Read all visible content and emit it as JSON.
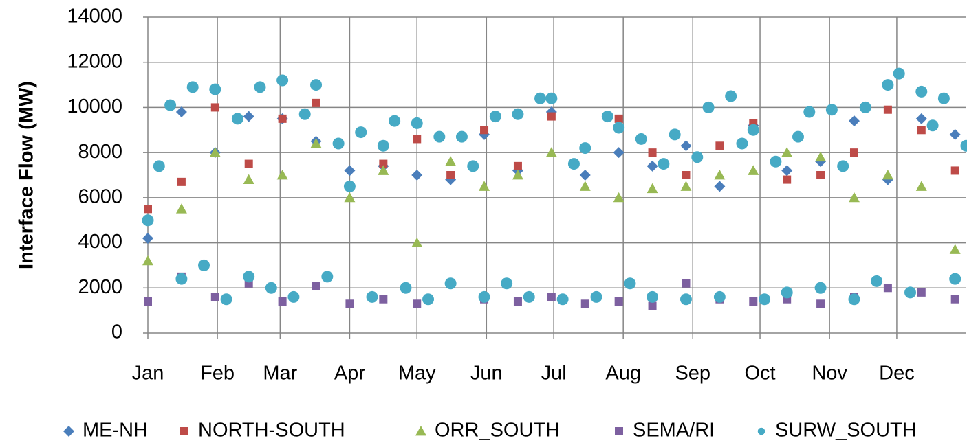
{
  "chart_data": {
    "type": "scatter",
    "ylabel": "Interface Flow (MW)",
    "xlim": [
      0,
      365
    ],
    "xticks": [
      {
        "value": 0,
        "label": "Jan"
      },
      {
        "value": 31,
        "label": "Feb"
      },
      {
        "value": 59,
        "label": "Mar"
      },
      {
        "value": 90,
        "label": "Apr"
      },
      {
        "value": 120,
        "label": "May"
      },
      {
        "value": 151,
        "label": "Jun"
      },
      {
        "value": 181,
        "label": "Jul"
      },
      {
        "value": 212,
        "label": "Aug"
      },
      {
        "value": 243,
        "label": "Sep"
      },
      {
        "value": 273,
        "label": "Oct"
      },
      {
        "value": 304,
        "label": "Nov"
      },
      {
        "value": 334,
        "label": "Dec"
      }
    ],
    "ylim": [
      0,
      14000
    ],
    "yticks": [
      0,
      2000,
      4000,
      6000,
      8000,
      10000,
      12000,
      14000
    ],
    "grid": true,
    "legend": "bottom",
    "series": [
      {
        "name": "ME-NH",
        "color": "#4a7ebb",
        "marker": "diamond",
        "x": [
          0,
          15,
          30,
          45,
          60,
          75,
          90,
          105,
          120,
          135,
          150,
          165,
          180,
          195,
          210,
          225,
          240,
          255,
          270,
          285,
          300,
          315,
          330,
          345,
          360
        ],
        "values": [
          4200,
          9800,
          8000,
          9600,
          9500,
          8500,
          7200,
          7400,
          7000,
          6800,
          8800,
          7200,
          9800,
          7000,
          8000,
          7400,
          8300,
          6500,
          9200,
          7200,
          7600,
          9400,
          6800,
          9500,
          8800
        ]
      },
      {
        "name": "NORTH-SOUTH",
        "color": "#be4b48",
        "marker": "square",
        "x": [
          0,
          15,
          30,
          45,
          60,
          75,
          90,
          105,
          120,
          135,
          150,
          165,
          180,
          195,
          210,
          225,
          240,
          255,
          270,
          285,
          300,
          315,
          330,
          345,
          360
        ],
        "values": [
          5500,
          6700,
          10000,
          7500,
          9500,
          10200,
          6500,
          7500,
          8600,
          7000,
          9000,
          7400,
          9600,
          8200,
          9500,
          8000,
          7000,
          8300,
          9300,
          6800,
          7000,
          8000,
          9900,
          9000,
          7200
        ]
      },
      {
        "name": "ORR_SOUTH",
        "color": "#98b954",
        "marker": "triangle",
        "x": [
          0,
          15,
          30,
          45,
          60,
          75,
          90,
          105,
          120,
          135,
          150,
          165,
          180,
          195,
          210,
          225,
          240,
          255,
          270,
          285,
          300,
          315,
          330,
          345,
          360
        ],
        "values": [
          3200,
          5500,
          8000,
          6800,
          7000,
          8400,
          6000,
          7200,
          4000,
          7600,
          6500,
          7000,
          8000,
          6500,
          6000,
          6400,
          6500,
          7000,
          7200,
          8000,
          7800,
          6000,
          7000,
          6500,
          3700
        ]
      },
      {
        "name": "SEMA/RI",
        "color": "#7d60a0",
        "marker": "square",
        "x": [
          0,
          15,
          30,
          45,
          60,
          75,
          90,
          105,
          120,
          135,
          150,
          165,
          180,
          195,
          210,
          225,
          240,
          255,
          270,
          285,
          300,
          315,
          330,
          345,
          360
        ],
        "values": [
          1400,
          2500,
          1600,
          2200,
          1400,
          2100,
          1300,
          1500,
          1300,
          2200,
          1500,
          1400,
          1600,
          1300,
          1400,
          1200,
          2200,
          1500,
          1400,
          1500,
          1300,
          1600,
          2000,
          1800,
          1500
        ]
      },
      {
        "name": "SURW_SOUTH",
        "color": "#46aac5",
        "marker": "circle",
        "x": [
          0,
          5,
          10,
          15,
          20,
          25,
          30,
          35,
          40,
          45,
          50,
          55,
          60,
          65,
          70,
          75,
          80,
          85,
          90,
          95,
          100,
          105,
          110,
          115,
          120,
          125,
          130,
          135,
          140,
          145,
          150,
          155,
          160,
          165,
          170,
          175,
          180,
          185,
          190,
          195,
          200,
          205,
          210,
          215,
          220,
          225,
          230,
          235,
          240,
          245,
          250,
          255,
          260,
          265,
          270,
          275,
          280,
          285,
          290,
          295,
          300,
          305,
          310,
          315,
          320,
          325,
          330,
          335,
          340,
          345,
          350,
          355,
          360,
          365
        ],
        "values": [
          5000,
          7400,
          10100,
          2400,
          10900,
          3000,
          10800,
          1500,
          9500,
          2500,
          10900,
          2000,
          11200,
          1600,
          9700,
          11000,
          2500,
          8400,
          6500,
          8900,
          1600,
          8300,
          9400,
          2000,
          9300,
          1500,
          8700,
          2200,
          8700,
          7400,
          1600,
          9600,
          2200,
          9700,
          1600,
          10400,
          10400,
          1500,
          7500,
          8200,
          1600,
          9600,
          9100,
          2200,
          8600,
          1600,
          7500,
          8800,
          1500,
          7800,
          10000,
          1600,
          10500,
          8400,
          9000,
          1500,
          7600,
          1800,
          8700,
          9800,
          2000,
          9900,
          7400,
          1500,
          10000,
          2300,
          11000,
          11500,
          1800,
          10700,
          9200,
          10400,
          2400,
          8300
        ]
      }
    ]
  }
}
